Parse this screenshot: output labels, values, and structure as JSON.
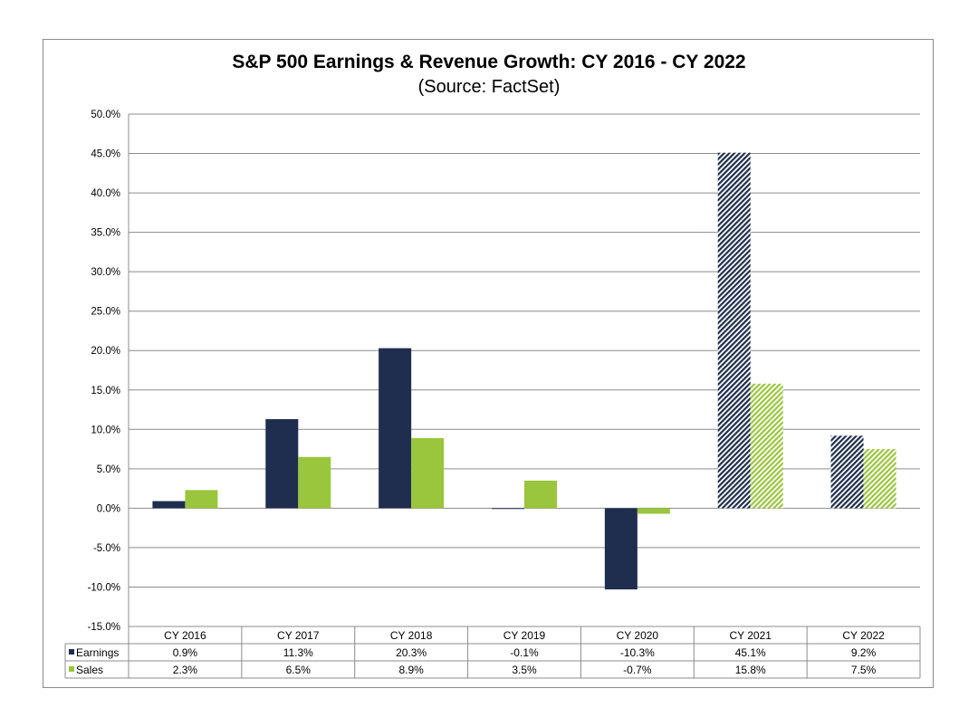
{
  "chart_data": {
    "type": "bar",
    "title": "S&P 500 Earnings & Revenue Growth: CY 2016 - CY 2022",
    "subtitle": "(Source: FactSet)",
    "categories": [
      "CY 2016",
      "CY 2017",
      "CY 2018",
      "CY 2019",
      "CY 2020",
      "CY 2021",
      "CY 2022"
    ],
    "series": [
      {
        "name": "Earnings",
        "values": [
          0.9,
          11.3,
          20.3,
          -0.1,
          -10.3,
          45.1,
          9.2
        ],
        "labels": [
          "0.9%",
          "11.3%",
          "20.3%",
          "-0.1%",
          "-10.3%",
          "45.1%",
          "9.2%"
        ],
        "color": "#1f2d4f",
        "estimated": [
          false,
          false,
          false,
          false,
          false,
          true,
          true
        ]
      },
      {
        "name": "Sales",
        "values": [
          2.3,
          6.5,
          8.9,
          3.5,
          -0.7,
          15.8,
          7.5
        ],
        "labels": [
          "2.3%",
          "6.5%",
          "8.9%",
          "3.5%",
          "-0.7%",
          "15.8%",
          "7.5%"
        ],
        "color": "#99c63c",
        "estimated": [
          false,
          false,
          false,
          false,
          false,
          true,
          true
        ]
      }
    ],
    "ylim": [
      -15,
      50
    ],
    "yticks": [
      -15,
      -10,
      -5,
      0,
      5,
      10,
      15,
      20,
      25,
      30,
      35,
      40,
      45,
      50
    ],
    "ytick_labels": [
      "-15.0%",
      "-10.0%",
      "-5.0%",
      "0.0%",
      "5.0%",
      "10.0%",
      "15.0%",
      "20.0%",
      "25.0%",
      "30.0%",
      "35.0%",
      "40.0%",
      "45.0%",
      "50.0%"
    ],
    "grid": true,
    "legend": "data-table"
  }
}
